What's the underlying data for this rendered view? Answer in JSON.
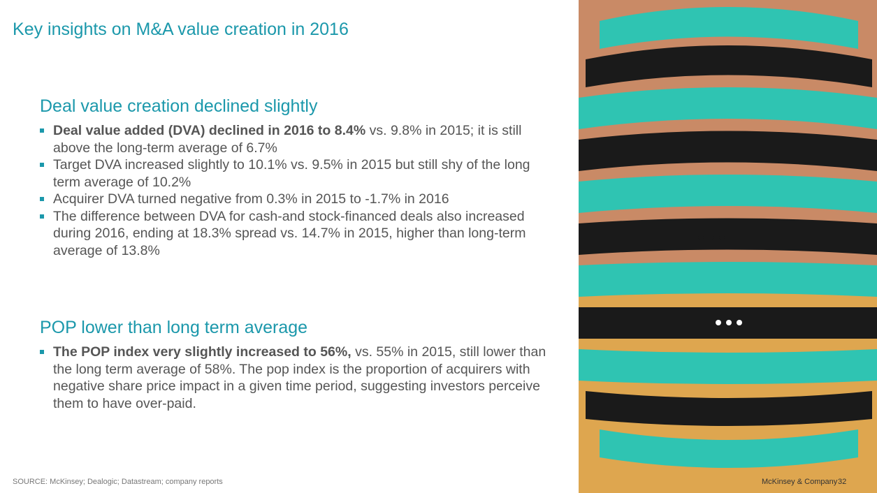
{
  "header": {
    "title": "Key insights on M&A value creation in 2016"
  },
  "sections": [
    {
      "heading": "Deal value creation declined slightly",
      "bullets": [
        {
          "bold": "Deal value added (DVA) declined in 2016 to 8.4%",
          "text": "vs. 9.8% in 2015; it is still above the long-term average of 6.7%"
        },
        {
          "text": "Target DVA increased slightly to 10.1% vs. 9.5% in 2015 but still shy of the long term average of 10.2%"
        },
        {
          "text": "Acquirer DVA turned negative from 0.3% in 2015 to -1.7% in 2016"
        },
        {
          "text": "The difference between DVA for cash-and stock-financed deals also increased during 2016, ending at 18.3% spread vs. 14.7% in 2015, higher than long-term average of 13.8%"
        }
      ]
    },
    {
      "heading": "POP lower than long term average",
      "bullets": [
        {
          "bold": "The POP index very slightly increased to 56%,",
          "text": "vs. 55% in 2015, still lower than the long term average of 58%.  The pop index is the proportion of acquirers with negative share price impact in a given time period, suggesting investors perceive them to have over-paid."
        }
      ]
    }
  ],
  "footer": {
    "source": "SOURCE: McKinsey; Dealogic; Datastream; company reports",
    "company": "McKinsey & Company",
    "page": "32"
  }
}
